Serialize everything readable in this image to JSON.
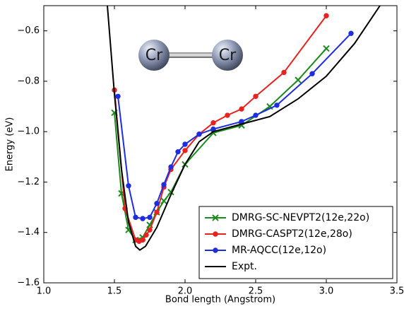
{
  "chart_data": {
    "type": "line",
    "xlabel": "Bond length (Angstrom)",
    "ylabel": "Energy (eV)",
    "annotations": [
      "Cr",
      "Cr"
    ],
    "xlim": [
      1.0,
      3.5
    ],
    "xticks": [
      {
        "value": 1.0,
        "label": "1.0"
      },
      {
        "value": 1.5,
        "label": "1.5"
      },
      {
        "value": 2.0,
        "label": "2.0"
      },
      {
        "value": 2.5,
        "label": "2.5"
      },
      {
        "value": 3.0,
        "label": "3.0"
      },
      {
        "value": 3.5,
        "label": "3.5"
      }
    ],
    "ylim": [
      -1.6,
      -0.5
    ],
    "yticks": [
      {
        "value": -1.6,
        "label": "−1.6"
      },
      {
        "value": -1.4,
        "label": "−1.4"
      },
      {
        "value": -1.2,
        "label": "−1.2"
      },
      {
        "value": -1.0,
        "label": "−1.0"
      },
      {
        "value": -0.8,
        "label": "−0.8"
      },
      {
        "value": -0.6,
        "label": "−0.6"
      }
    ],
    "legend": "lower right",
    "series": [
      {
        "name": "DMRG-SC-NEVPT2(12e,22o)",
        "color": "#1a8a1a",
        "marker": "x",
        "x": [
          1.5,
          1.55,
          1.6,
          1.65,
          1.7,
          1.75,
          1.8,
          1.85,
          1.9,
          2.0,
          2.2,
          2.4,
          2.6,
          2.8,
          3.0
        ],
        "values": [
          -0.925,
          -1.245,
          -1.39,
          -1.43,
          -1.42,
          -1.37,
          -1.32,
          -1.275,
          -1.24,
          -1.13,
          -1.005,
          -0.975,
          -0.9,
          -0.795,
          -0.67
        ]
      },
      {
        "name": "DMRG-CASPT2(12e,28o)",
        "color": "#e8231f",
        "marker": "o",
        "x": [
          1.5,
          1.575,
          1.65,
          1.675,
          1.7,
          1.725,
          1.75,
          1.8,
          1.85,
          1.9,
          2.0,
          2.1,
          2.2,
          2.3,
          2.4,
          2.5,
          2.7,
          3.0
        ],
        "values": [
          -0.835,
          -1.305,
          -1.43,
          -1.435,
          -1.43,
          -1.41,
          -1.39,
          -1.32,
          -1.22,
          -1.15,
          -1.075,
          -1.01,
          -0.965,
          -0.935,
          -0.91,
          -0.86,
          -0.765,
          -0.54
        ]
      },
      {
        "name": "MR-AQCC(12e,12o)",
        "color": "#1f2de0",
        "marker": "o",
        "x": [
          1.525,
          1.6,
          1.65,
          1.7,
          1.75,
          1.8,
          1.85,
          1.9,
          1.95,
          2.0,
          2.1,
          2.2,
          2.4,
          2.5,
          2.65,
          2.9,
          3.175
        ],
        "values": [
          -0.86,
          -1.215,
          -1.34,
          -1.345,
          -1.34,
          -1.285,
          -1.21,
          -1.14,
          -1.08,
          -1.05,
          -1.01,
          -0.99,
          -0.96,
          -0.935,
          -0.895,
          -0.77,
          -0.61
        ]
      },
      {
        "name": "Expt.",
        "color": "#000000",
        "marker": "none",
        "x": [
          1.45,
          1.5,
          1.55,
          1.6,
          1.65,
          1.68,
          1.72,
          1.8,
          1.9,
          2.0,
          2.1,
          2.2,
          2.4,
          2.6,
          2.8,
          3.0,
          3.2,
          3.38
        ],
        "values": [
          -0.5,
          -0.85,
          -1.15,
          -1.36,
          -1.455,
          -1.47,
          -1.455,
          -1.38,
          -1.25,
          -1.13,
          -1.04,
          -1.0,
          -0.97,
          -0.94,
          -0.87,
          -0.78,
          -0.65,
          -0.5
        ]
      }
    ]
  }
}
